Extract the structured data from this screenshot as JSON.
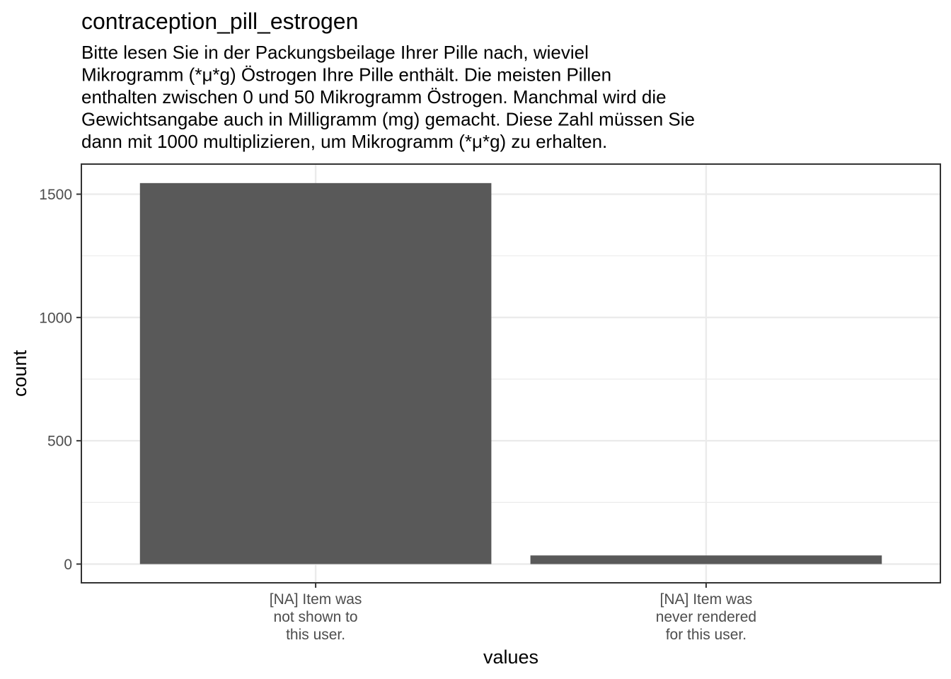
{
  "chart_data": {
    "type": "bar",
    "title": "contraception_pill_estrogen",
    "subtitle_lines": [
      "Bitte lesen Sie in der Packungsbeilage Ihrer Pille nach, wieviel",
      "Mikrogramm (*μ*g) Östrogen Ihre Pille enthält. Die meisten Pillen",
      "enthalten zwischen 0 und 50 Mikrogramm Östrogen. Manchmal wird die",
      "Gewichtsangabe auch in Milligramm (mg) gemacht. Diese Zahl müssen Sie",
      "dann mit 1000 multiplizieren, um Mikrogramm (*μ*g) zu erhalten."
    ],
    "xlabel": "values",
    "ylabel": "count",
    "categories": [
      [
        "[NA] Item was",
        "not shown to",
        "this user."
      ],
      [
        "[NA] Item was",
        "never rendered",
        "for this user."
      ]
    ],
    "values": [
      1545,
      35
    ],
    "ylim": [
      -76,
      1622
    ],
    "yticks": [
      0,
      500,
      1000,
      1500
    ],
    "yticks_minor": [
      250,
      750,
      1250
    ],
    "grid": true,
    "bar_color": "#595959",
    "grid_color": "#ebebeb",
    "panel_border_color": "#333333"
  }
}
